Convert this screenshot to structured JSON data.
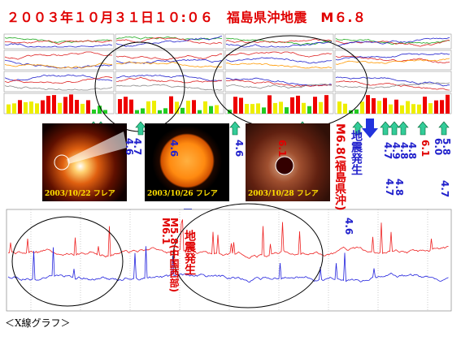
{
  "title": "２００３年１０月３１日１０:０６　福島県沖地震　M６.８",
  "images": [
    {
      "caption": "2003/10/22 フレア"
    },
    {
      "caption": "2003/10/26 フレア"
    },
    {
      "caption": "2003/10/28 フレア"
    }
  ],
  "annotations": [
    "4.6",
    "4.7",
    "4.6",
    "4.6",
    "6.1",
    "M6.8(福島県沖)",
    "地震発生",
    "4.7",
    "4.9",
    "4.8",
    "4.8",
    "4.7",
    "4.8",
    "6.1",
    "6.0",
    "5.8",
    "4.7",
    "4.6",
    "M6.1",
    "M5.8(中国西部)",
    "地震発生"
  ],
  "footer": "＜X線グラフ＞"
}
